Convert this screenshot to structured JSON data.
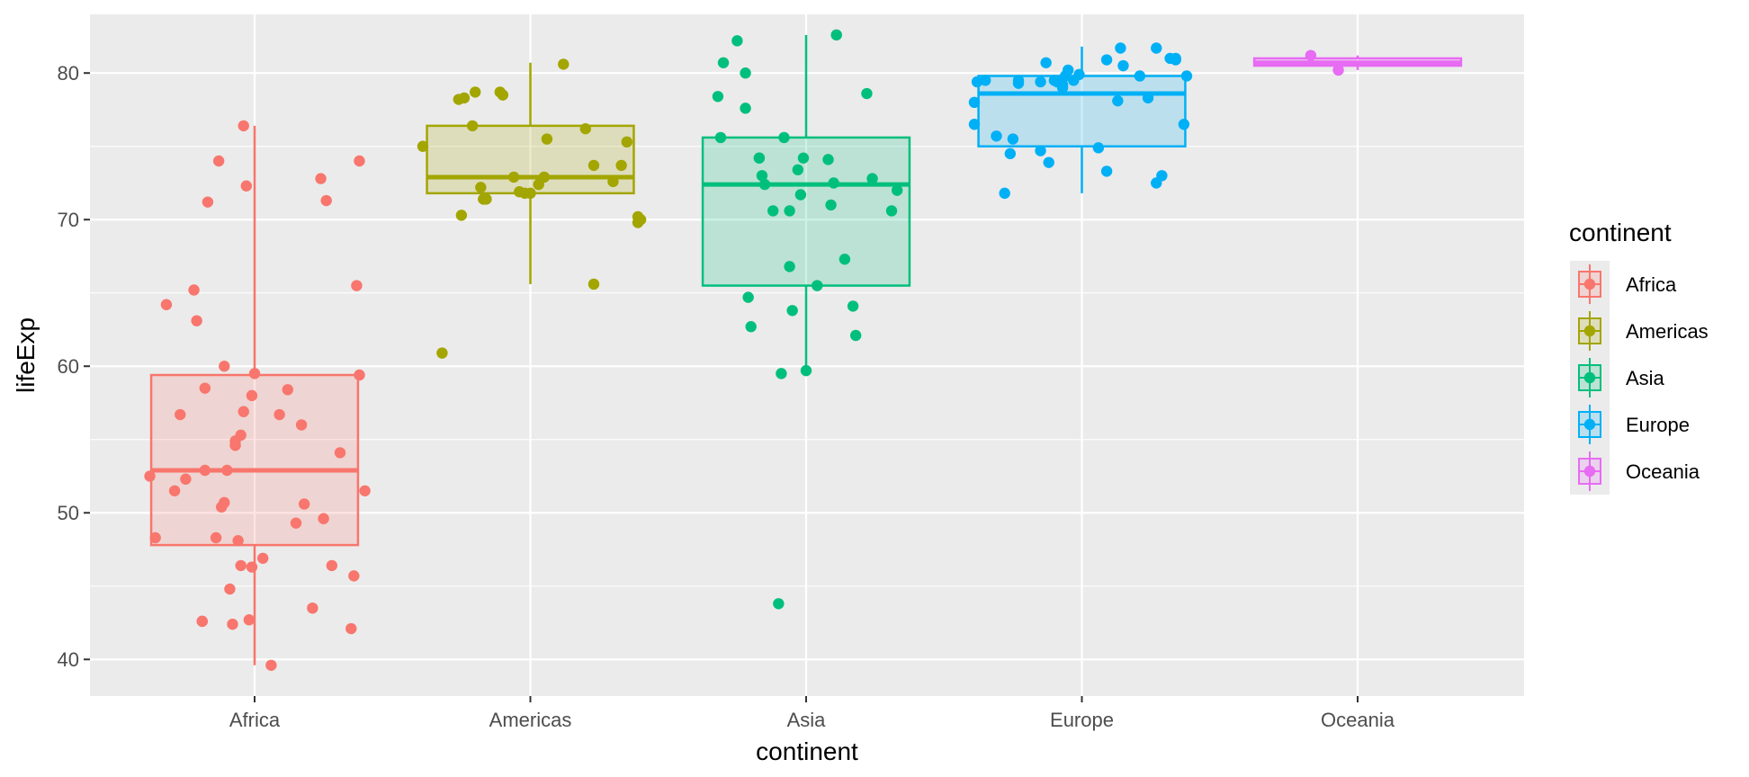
{
  "chart_data": {
    "type": "box",
    "xlabel": "continent",
    "ylabel": "lifeExp",
    "ylim": [
      37.5,
      84
    ],
    "yticks": [
      40,
      50,
      60,
      70,
      80
    ],
    "grid": true,
    "legend": {
      "title": "continent",
      "position": "right"
    },
    "categories": [
      "Africa",
      "Americas",
      "Asia",
      "Europe",
      "Oceania"
    ],
    "colors": [
      "#F8766D",
      "#A3A500",
      "#00BF7D",
      "#00B0F6",
      "#E76BF3"
    ],
    "boxes": [
      {
        "category": "Africa",
        "min": 39.6,
        "q1": 47.8,
        "median": 52.9,
        "q3": 59.4,
        "max": 76.4
      },
      {
        "category": "Americas",
        "min": 65.6,
        "q1": 71.8,
        "median": 72.9,
        "q3": 76.4,
        "max": 80.7
      },
      {
        "category": "Asia",
        "min": 59.5,
        "q1": 65.5,
        "median": 72.4,
        "q3": 75.6,
        "max": 82.6
      },
      {
        "category": "Europe",
        "min": 71.8,
        "q1": 75.0,
        "median": 78.6,
        "q3": 79.8,
        "max": 81.8
      },
      {
        "category": "Oceania",
        "min": 80.2,
        "q1": 80.5,
        "median": 80.7,
        "q3": 81.0,
        "max": 81.2
      }
    ],
    "points": [
      {
        "category": "Africa",
        "jitter": [
          -0.38,
          -0.36,
          -0.32,
          -0.29,
          -0.27,
          -0.25,
          -0.22,
          -0.21,
          -0.19,
          -0.19,
          -0.18,
          -0.18,
          -0.17,
          -0.14,
          -0.13,
          -0.12,
          -0.11,
          -0.11,
          -0.1,
          -0.09,
          -0.08,
          -0.07,
          -0.07,
          -0.06,
          -0.05,
          -0.05,
          -0.04,
          -0.04,
          -0.03,
          -0.02,
          -0.01,
          -0.01,
          0.0,
          0.03,
          0.06,
          0.09,
          0.12,
          0.15,
          0.17,
          0.18,
          0.21,
          0.24,
          0.25,
          0.26,
          0.28,
          0.31,
          0.35,
          0.36,
          0.37,
          0.38,
          0.38,
          0.4
        ],
        "values": [
          52.5,
          48.3,
          64.2,
          51.5,
          56.7,
          52.3,
          65.2,
          63.1,
          42.6,
          42.6,
          52.9,
          58.5,
          71.2,
          48.3,
          74.0,
          50.4,
          50.7,
          60.0,
          52.9,
          44.8,
          42.4,
          54.6,
          54.9,
          48.1,
          46.4,
          55.3,
          56.9,
          76.4,
          72.3,
          42.7,
          46.3,
          58.0,
          59.5,
          46.9,
          39.6,
          56.7,
          58.4,
          49.3,
          56.0,
          50.6,
          43.5,
          72.8,
          49.6,
          71.3,
          46.4,
          54.1,
          42.1,
          45.7,
          65.5,
          59.4,
          74.0,
          51.5
        ]
      },
      {
        "category": "Americas",
        "jitter": [
          -0.39,
          -0.32,
          -0.26,
          -0.25,
          -0.24,
          -0.21,
          -0.2,
          -0.18,
          -0.17,
          -0.17,
          -0.16,
          -0.11,
          -0.1,
          -0.06,
          -0.04,
          -0.02,
          0.0,
          0.03,
          0.05,
          0.06,
          0.12,
          0.2,
          0.23,
          0.23,
          0.3,
          0.33,
          0.35,
          0.39,
          0.39,
          0.4
        ],
        "values": [
          75.0,
          60.9,
          78.2,
          70.3,
          78.3,
          76.4,
          78.7,
          72.2,
          71.4,
          71.4,
          71.4,
          78.7,
          78.5,
          72.9,
          71.9,
          71.8,
          71.8,
          72.4,
          72.9,
          75.5,
          80.6,
          76.2,
          65.6,
          73.7,
          72.6,
          73.7,
          75.3,
          70.2,
          69.8,
          70.0
        ]
      },
      {
        "category": "Asia",
        "jitter": [
          -0.32,
          -0.31,
          -0.3,
          -0.25,
          -0.22,
          -0.22,
          -0.21,
          -0.2,
          -0.17,
          -0.17,
          -0.16,
          -0.15,
          -0.12,
          -0.1,
          -0.09,
          -0.08,
          -0.06,
          -0.06,
          -0.05,
          -0.03,
          -0.02,
          -0.01,
          0.0,
          0.04,
          0.08,
          0.09,
          0.1,
          0.11,
          0.14,
          0.17,
          0.18,
          0.22,
          0.24,
          0.31,
          0.33
        ],
        "values": [
          78.4,
          75.6,
          80.7,
          82.2,
          80.0,
          77.6,
          64.7,
          62.7,
          74.2,
          74.2,
          73.0,
          72.4,
          70.6,
          43.8,
          59.5,
          75.6,
          66.8,
          70.6,
          63.8,
          73.4,
          71.7,
          74.2,
          59.7,
          65.5,
          74.1,
          71.0,
          72.5,
          82.6,
          67.3,
          64.1,
          62.1,
          78.6,
          72.8,
          70.6,
          72.0
        ]
      },
      {
        "category": "Europe",
        "jitter": [
          -0.39,
          -0.39,
          -0.38,
          -0.35,
          -0.31,
          -0.28,
          -0.26,
          -0.25,
          -0.23,
          -0.23,
          -0.15,
          -0.15,
          -0.13,
          -0.12,
          -0.1,
          -0.09,
          -0.07,
          -0.07,
          -0.06,
          -0.05,
          -0.03,
          -0.01,
          0.06,
          0.09,
          0.09,
          0.13,
          0.14,
          0.15,
          0.21,
          0.24,
          0.27,
          0.27,
          0.29,
          0.32,
          0.34,
          0.34,
          0.37,
          0.38
        ],
        "values": [
          78.0,
          76.5,
          79.4,
          79.5,
          75.7,
          71.8,
          74.5,
          75.5,
          79.3,
          79.5,
          74.7,
          79.4,
          80.7,
          73.9,
          79.5,
          79.4,
          79.0,
          79.2,
          79.8,
          80.2,
          79.5,
          79.9,
          74.9,
          73.3,
          80.9,
          78.1,
          81.7,
          80.5,
          79.8,
          78.3,
          72.5,
          81.7,
          73.0,
          81.0,
          80.9,
          81.0,
          76.5,
          79.8
        ]
      },
      {
        "category": "Oceania",
        "jitter": [
          -0.17,
          -0.07
        ],
        "values": [
          81.2,
          80.2
        ]
      }
    ]
  }
}
